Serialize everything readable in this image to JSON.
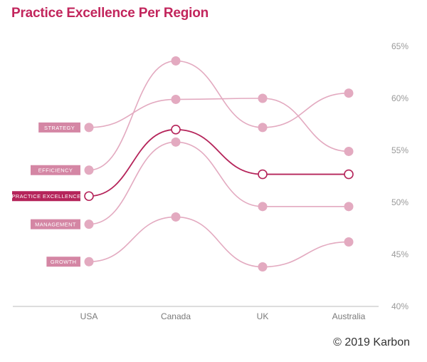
{
  "title": "Practice Excellence Per Region",
  "credit": "© 2019 Karbon",
  "colors": {
    "title": "#c2255c",
    "highlight": "#b5245a",
    "muted": "#e3aac0",
    "muted_label": "#d486a4",
    "axis": "#bbbbbb"
  },
  "chart_data": {
    "type": "line",
    "title": "Practice Excellence Per Region",
    "categories": [
      "USA",
      "Canada",
      "UK",
      "Australia"
    ],
    "ylim": [
      40,
      65
    ],
    "yticks": [
      40,
      45,
      50,
      55,
      60,
      65
    ],
    "ytick_labels": [
      "40%",
      "45%",
      "50%",
      "55%",
      "60%",
      "65%"
    ],
    "y_axis_position": "right",
    "series": [
      {
        "name": "STRATEGY",
        "values": [
          57.2,
          59.9,
          60.0,
          54.9
        ],
        "highlight": false
      },
      {
        "name": "EFFICIENCY",
        "values": [
          53.1,
          63.6,
          57.2,
          60.5
        ],
        "highlight": false
      },
      {
        "name": "PRACTICE EXCELLENCE",
        "values": [
          50.6,
          57.0,
          52.7,
          52.7
        ],
        "highlight": true
      },
      {
        "name": "MANAGEMENT",
        "values": [
          47.9,
          55.8,
          49.6,
          49.6
        ],
        "highlight": false
      },
      {
        "name": "GROWTH",
        "values": [
          44.3,
          48.6,
          43.8,
          46.2
        ],
        "highlight": false
      }
    ]
  }
}
